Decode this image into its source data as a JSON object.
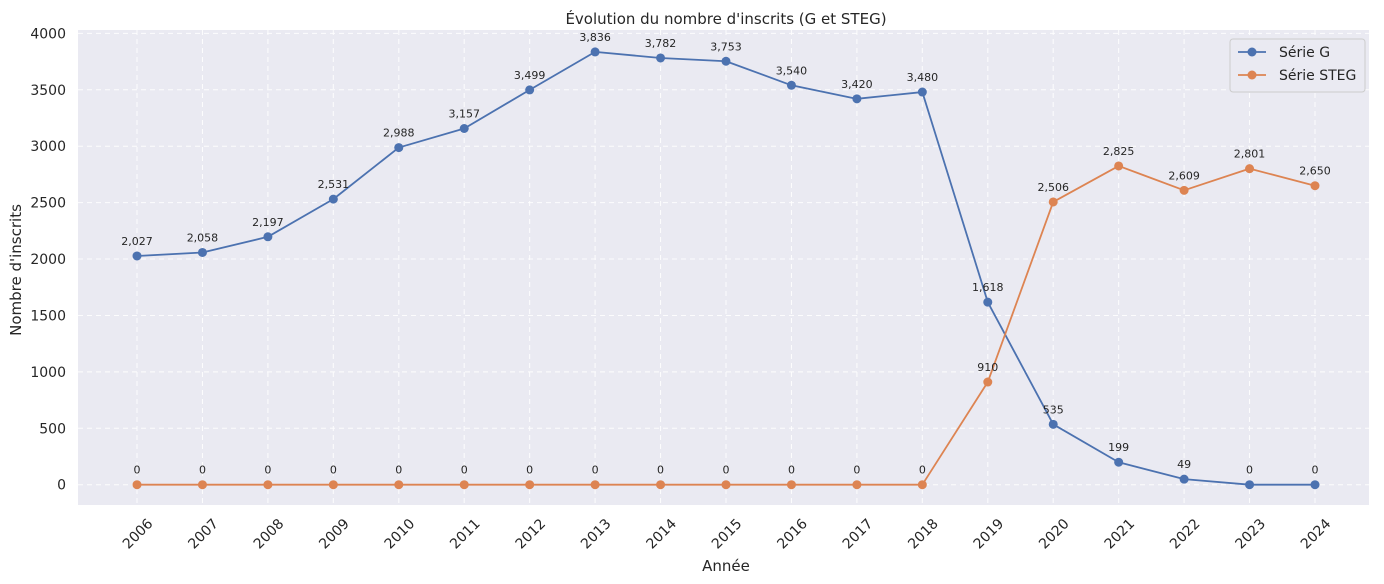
{
  "chart_data": {
    "type": "line",
    "title": "Évolution du nombre d'inscrits (G et STEG)",
    "xlabel": "Année",
    "ylabel": "Nombre d'inscrits",
    "categories": [
      "2006",
      "2007",
      "2008",
      "2009",
      "2010",
      "2011",
      "2012",
      "2013",
      "2014",
      "2015",
      "2016",
      "2017",
      "2018",
      "2019",
      "2020",
      "2021",
      "2022",
      "2023",
      "2024"
    ],
    "ylim": [
      -180,
      4030
    ],
    "yticks": [
      0,
      500,
      1000,
      1500,
      2000,
      2500,
      3000,
      3500,
      4000
    ],
    "grid": true,
    "legend_position": "top-right",
    "series": [
      {
        "name": "Série G",
        "color": "#4c72b0",
        "values": [
          2027,
          2058,
          2197,
          2531,
          2988,
          3157,
          3499,
          3836,
          3782,
          3753,
          3540,
          3420,
          3480,
          1618,
          535,
          199,
          49,
          0,
          0
        ],
        "labels": [
          "2,027",
          "2,058",
          "2,197",
          "2,531",
          "2,988",
          "3,157",
          "3,499",
          "3,836",
          "3,782",
          "3,753",
          "3,540",
          "3,420",
          "3,480",
          "1,618",
          "535",
          "199",
          "49",
          "0",
          "0"
        ]
      },
      {
        "name": "Série STEG",
        "color": "#dd8452",
        "values": [
          0,
          0,
          0,
          0,
          0,
          0,
          0,
          0,
          0,
          0,
          0,
          0,
          0,
          910,
          2506,
          2825,
          2609,
          2801,
          2650
        ],
        "labels": [
          "0",
          "0",
          "0",
          "0",
          "0",
          "0",
          "0",
          "0",
          "0",
          "0",
          "0",
          "0",
          "0",
          "910",
          "2,506",
          "2,825",
          "2,609",
          "2,801",
          "2,650"
        ]
      }
    ],
    "plot_background": "#eaeaf2",
    "grid_color": "#ffffff"
  }
}
